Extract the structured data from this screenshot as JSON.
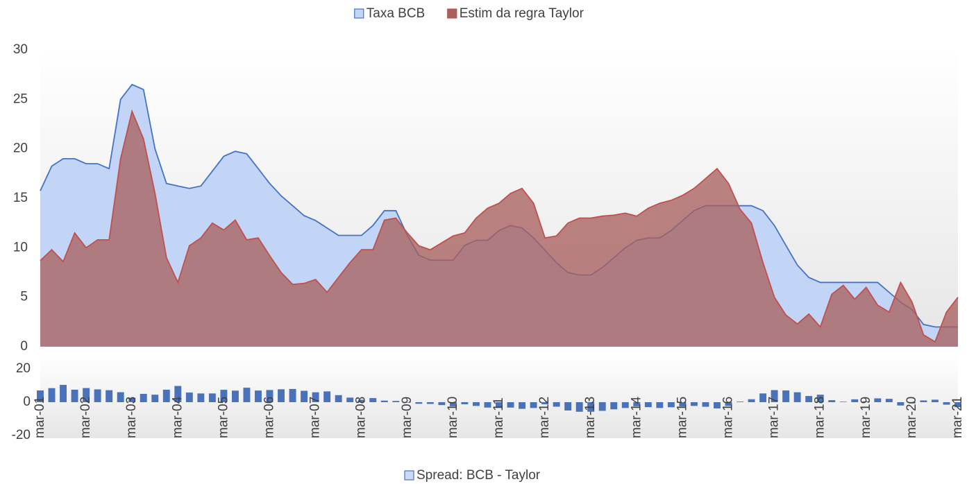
{
  "chart_data": [
    {
      "type": "area",
      "series": [
        {
          "name": "Taxa BCB",
          "color": "#4472c4",
          "fill": "#c3d5f6",
          "values": [
            15.75,
            18.25,
            19,
            19,
            18.5,
            18.5,
            18,
            25,
            26.5,
            26,
            20,
            16.5,
            16.25,
            16,
            16.25,
            17.75,
            19.25,
            19.75,
            19.5,
            18,
            16.5,
            15.25,
            14.25,
            13.25,
            12.75,
            12,
            11.25,
            11.25,
            11.25,
            12.25,
            13.75,
            13.75,
            11.25,
            9.25,
            8.75,
            8.75,
            8.75,
            10.25,
            10.75,
            10.75,
            11.75,
            12.25,
            12,
            11,
            9.75,
            8.5,
            7.5,
            7.25,
            7.25,
            8,
            9,
            10,
            10.75,
            11,
            11,
            11.75,
            12.75,
            13.75,
            14.25,
            14.25,
            14.25,
            14.25,
            14.25,
            13.75,
            12.25,
            10.25,
            8.25,
            7,
            6.5,
            6.5,
            6.5,
            6.5,
            6.5,
            6.5,
            5.5,
            4.5,
            3.75,
            2.25,
            2,
            2,
            2
          ]
        },
        {
          "name": "Estim da regra Taylor",
          "color": "#c0504d",
          "fill": "#a8615f",
          "values": [
            8.7,
            9.8,
            8.6,
            11.5,
            10,
            10.8,
            10.8,
            19,
            23.8,
            21,
            15.5,
            9,
            6.5,
            10.2,
            11,
            12.5,
            11.8,
            12.8,
            10.8,
            11,
            9.2,
            7.5,
            6.3,
            6.4,
            6.8,
            5.5,
            7,
            8.5,
            9.8,
            9.8,
            12.8,
            13,
            11.5,
            10.2,
            9.8,
            10.5,
            11.2,
            11.5,
            13,
            14,
            14.5,
            15.5,
            16,
            14.5,
            11,
            11.2,
            12.5,
            13,
            13,
            13.2,
            13.3,
            13.5,
            13.2,
            14,
            14.5,
            14.8,
            15.3,
            16,
            17,
            18,
            16.5,
            13.9,
            12.5,
            8.5,
            5,
            3.2,
            2.3,
            3.3,
            2,
            5.3,
            6.2,
            4.8,
            6,
            4.2,
            3.5,
            6.5,
            4.5,
            1.2,
            0.5,
            3.5,
            5
          ]
        }
      ],
      "ylim": [
        0,
        30
      ],
      "yticks": [
        0,
        5,
        10,
        15,
        20,
        25,
        30
      ],
      "legend": "top"
    },
    {
      "type": "bar",
      "categories": [
        "mar-01",
        null,
        null,
        null,
        "mar-02",
        null,
        null,
        null,
        "mar-03",
        null,
        null,
        null,
        "mar-04",
        null,
        null,
        null,
        "mar-05",
        null,
        null,
        null,
        "mar-06",
        null,
        null,
        null,
        "mar-07",
        null,
        null,
        null,
        "mar-08",
        null,
        null,
        null,
        "mar-09",
        null,
        null,
        null,
        "mar-10",
        null,
        null,
        null,
        "mar-11",
        null,
        null,
        null,
        "mar-12",
        null,
        null,
        null,
        "mar-13",
        null,
        null,
        null,
        "mar-14",
        null,
        null,
        null,
        "mar-15",
        null,
        null,
        null,
        "mar-16",
        null,
        null,
        null,
        "mar-17",
        null,
        null,
        null,
        "mar-18",
        null,
        null,
        null,
        "mar-19",
        null,
        null,
        null,
        "mar-20",
        null,
        null,
        null,
        "mar-21"
      ],
      "series": [
        {
          "name": "Spread: BCB - Taylor",
          "color": "#4a72b8",
          "values": [
            7.05,
            8.45,
            10.4,
            7.5,
            8.5,
            7.7,
            7.2,
            6,
            2.7,
            5,
            4.5,
            7.5,
            9.75,
            5.8,
            5.25,
            5.25,
            7.45,
            6.95,
            8.7,
            7,
            7.3,
            7.75,
            7.95,
            6.85,
            5.95,
            6.5,
            4.25,
            2.75,
            1.45,
            2.45,
            0.95,
            0.75,
            -0.25,
            -0.95,
            -1.05,
            -1.75,
            -2.45,
            -1.25,
            -2.25,
            -3.25,
            -2.75,
            -3.25,
            -4,
            -3.5,
            -1.25,
            -2.7,
            -5,
            -5.75,
            -5.75,
            -5.2,
            -4.3,
            -3.5,
            -2.45,
            -3,
            -3.5,
            -3.05,
            -2.55,
            -2.25,
            -2.75,
            -3.75,
            -2.25,
            0.35,
            1.75,
            5.25,
            7.25,
            7.05,
            5.95,
            3.7,
            4.5,
            1.2,
            0.3,
            1.7,
            0.5,
            2.3,
            2,
            -2,
            -0.75,
            1.05,
            1.5,
            -1.5,
            -3
          ]
        }
      ],
      "ylim": [
        -20,
        20
      ],
      "yticks": [
        -20,
        0,
        20
      ],
      "legend": "bottom"
    }
  ]
}
